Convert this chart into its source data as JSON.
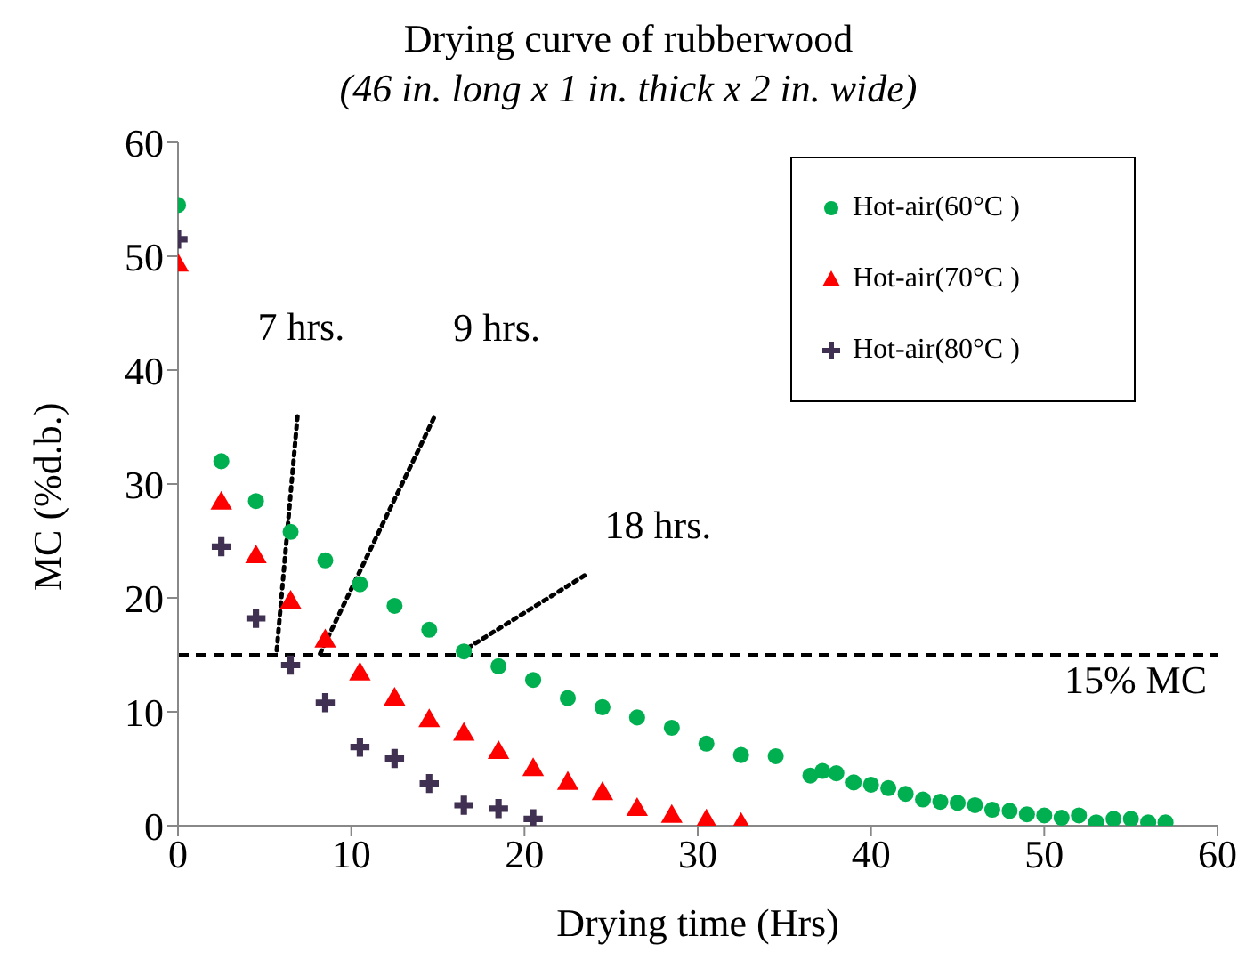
{
  "chart_data": {
    "type": "scatter",
    "title": "Drying curve of rubberwood",
    "subtitle": "(46 in. long x 1 in. thick x 2 in. wide)",
    "xlabel": "Drying time (Hrs)",
    "ylabel": "MC (%d.b.)",
    "xlim": [
      0,
      60
    ],
    "xticks": [
      0,
      10,
      20,
      30,
      40,
      50,
      60
    ],
    "ylim": [
      0,
      60
    ],
    "yticks": [
      0,
      10,
      20,
      30,
      40,
      50,
      60
    ],
    "grid": false,
    "legend": "top right",
    "series": [
      {
        "name": "Hot-air(60°C )",
        "color": "#00b050",
        "marker": "circle",
        "x": [
          0,
          2.5,
          4.5,
          6.5,
          8.5,
          10.5,
          12.5,
          14.5,
          16.5,
          18.5,
          20.5,
          22.5,
          24.5,
          26.5,
          28.5,
          30.5,
          32.5,
          34.5,
          36.5,
          37.2,
          38,
          39,
          40,
          41,
          42,
          43,
          44,
          45,
          46,
          47,
          48,
          49,
          50,
          51,
          52,
          53,
          54,
          55,
          56,
          57
        ],
        "values": [
          54.5,
          32,
          28.5,
          25.8,
          23.3,
          21.2,
          19.3,
          17.2,
          15.3,
          14,
          12.8,
          11.2,
          10.4,
          9.5,
          8.6,
          7.2,
          6.2,
          6.1,
          4.4,
          4.8,
          4.6,
          3.8,
          3.6,
          3.3,
          2.8,
          2.3,
          2.1,
          2,
          1.8,
          1.4,
          1.3,
          1,
          0.9,
          0.7,
          0.9,
          0.3,
          0.6,
          0.6,
          0.3,
          0.3
        ]
      },
      {
        "name": "Hot-air(70°C )",
        "color": "#ff0000",
        "marker": "triangle",
        "x": [
          0,
          2.5,
          4.5,
          6.5,
          8.5,
          10.5,
          12.5,
          14.5,
          16.5,
          18.5,
          20.5,
          22.5,
          24.5,
          26.5,
          28.5,
          30.5,
          32.5
        ],
        "values": [
          49.2,
          28.3,
          23.6,
          19.6,
          16.2,
          13.3,
          11.1,
          9.2,
          8,
          6.4,
          4.9,
          3.7,
          2.8,
          1.4,
          0.8,
          0.4,
          0.1
        ]
      },
      {
        "name": "Hot-air(80°C )",
        "color": "#403152",
        "marker": "cross",
        "x": [
          0,
          2.5,
          4.5,
          6.5,
          8.5,
          10.5,
          12.5,
          14.5,
          16.5,
          18.5,
          20.5
        ],
        "values": [
          51.5,
          24.5,
          18.2,
          14.1,
          10.8,
          6.9,
          5.9,
          3.7,
          1.8,
          1.5,
          0.6
        ]
      },
      {
        "type": "line",
        "color": "#000000",
        "line_style": "dotted",
        "marker": "none",
        "x": [
          5.7,
          6.9
        ],
        "values": [
          15.4,
          36
        ]
      },
      {
        "type": "line",
        "color": "#000000",
        "line_style": "dotted",
        "marker": "none",
        "x": [
          8.2,
          14.8
        ],
        "values": [
          15.1,
          35.9
        ]
      },
      {
        "type": "line",
        "color": "#000000",
        "line_style": "dotted",
        "marker": "none",
        "x": [
          16.3,
          23.5
        ],
        "values": [
          15.2,
          22
        ]
      }
    ],
    "ref_lines": [
      {
        "axis": "y",
        "value": 15,
        "label": "15% MC",
        "color": "#000000",
        "line_style": "dashed"
      }
    ],
    "annotations": [
      {
        "text": "7 hrs.",
        "x": 6.9,
        "y": 36
      },
      {
        "text": "9 hrs.",
        "x": 14.8,
        "y": 35.9
      },
      {
        "text": "18 hrs.",
        "x": 23.5,
        "y": 22
      }
    ]
  }
}
